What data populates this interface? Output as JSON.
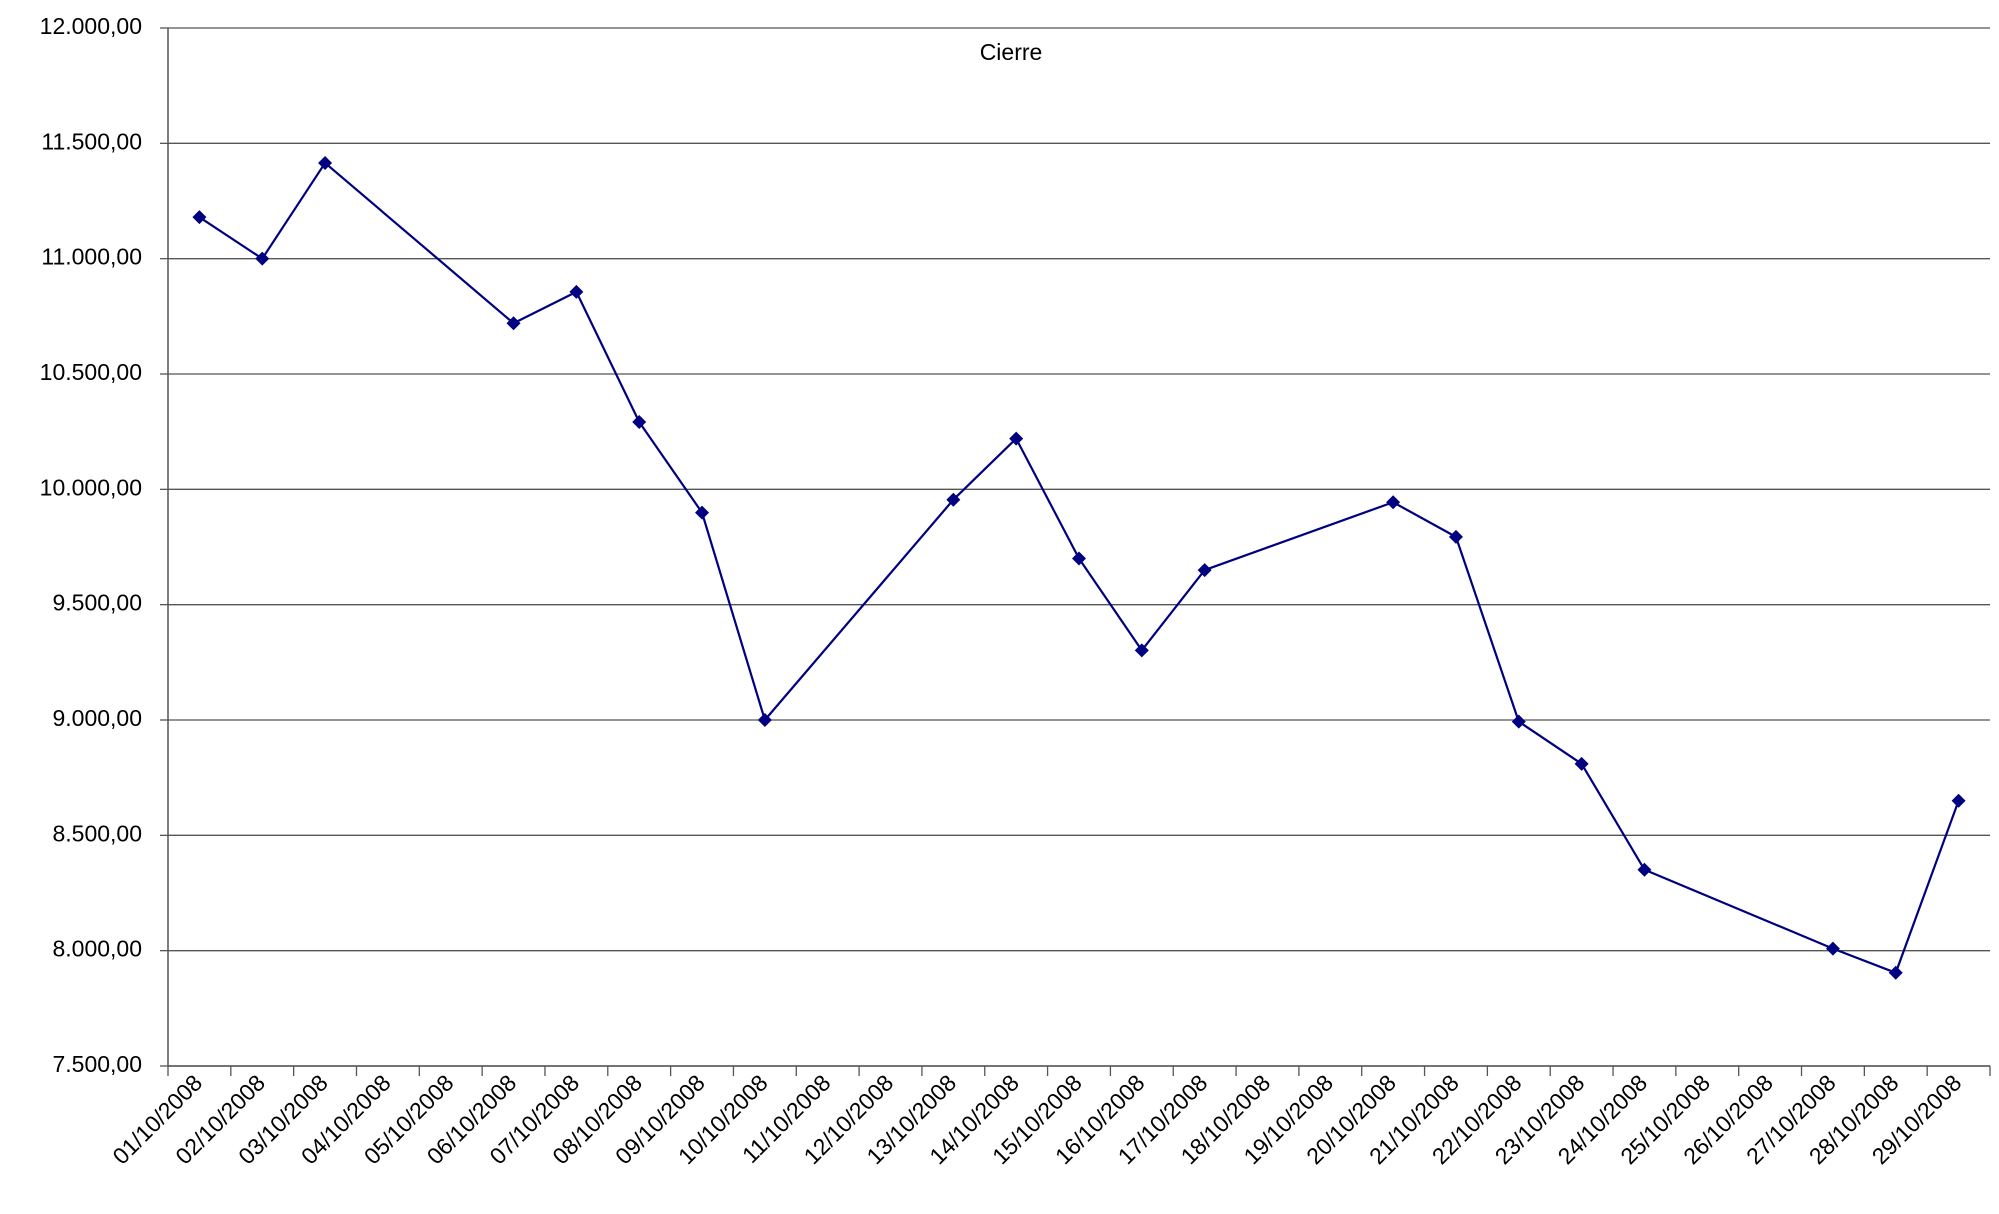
{
  "chart_data": {
    "type": "line",
    "title": "Cierre",
    "categories": [
      "01/10/2008",
      "02/10/2008",
      "03/10/2008",
      "04/10/2008",
      "05/10/2008",
      "06/10/2008",
      "07/10/2008",
      "08/10/2008",
      "09/10/2008",
      "10/10/2008",
      "11/10/2008",
      "12/10/2008",
      "13/10/2008",
      "14/10/2008",
      "15/10/2008",
      "16/10/2008",
      "17/10/2008",
      "18/10/2008",
      "19/10/2008",
      "20/10/2008",
      "21/10/2008",
      "22/10/2008",
      "23/10/2008",
      "24/10/2008",
      "25/10/2008",
      "26/10/2008",
      "27/10/2008",
      "28/10/2008",
      "29/10/2008"
    ],
    "series": [
      {
        "name": "Cierre",
        "color": "#000080",
        "values": [
          11180,
          11000,
          11415,
          null,
          null,
          10720,
          10856,
          10292,
          9899,
          9000,
          null,
          null,
          9955,
          10220,
          9700,
          9302,
          9650,
          null,
          null,
          9944,
          9794,
          8993,
          8810,
          8351,
          null,
          null,
          8009,
          7904,
          8650
        ]
      }
    ],
    "ylim": [
      7500,
      12000
    ],
    "yticks": [
      {
        "value": 7500,
        "label": "7.500,00"
      },
      {
        "value": 8000,
        "label": "8.000,00"
      },
      {
        "value": 8500,
        "label": "8.500,00"
      },
      {
        "value": 9000,
        "label": "9.000,00"
      },
      {
        "value": 9500,
        "label": "9.500,00"
      },
      {
        "value": 10000,
        "label": "10.000,00"
      },
      {
        "value": 10500,
        "label": "10.500,00"
      },
      {
        "value": 11000,
        "label": "11.000,00"
      },
      {
        "value": 11500,
        "label": "11.500,00"
      },
      {
        "value": 12000,
        "label": "12.000,00"
      }
    ],
    "grid": true,
    "span_gaps": true
  }
}
